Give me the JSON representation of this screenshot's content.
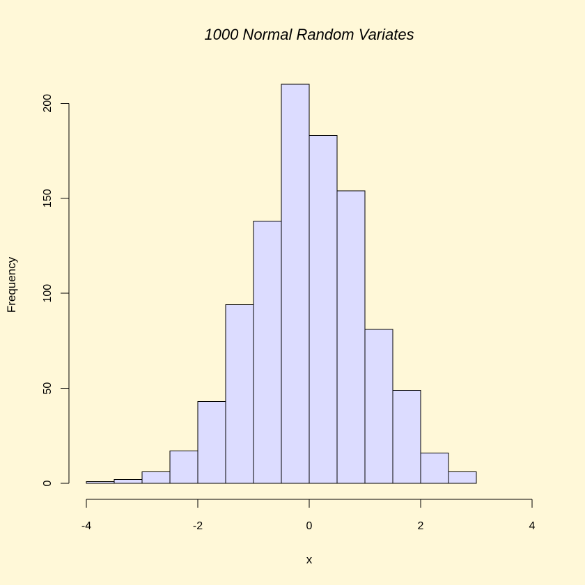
{
  "chart_data": {
    "type": "bar",
    "title": "1000 Normal Random Variates",
    "xlabel": "x",
    "ylabel": "Frequency",
    "colors": {
      "background": "#fff8d8",
      "bar_fill": "#dcdcff",
      "bar_stroke": "#000000"
    },
    "xlim": [
      -4,
      4
    ],
    "ylim": [
      0,
      210
    ],
    "x_ticks": [
      -4,
      -2,
      0,
      2,
      4
    ],
    "y_ticks": [
      0,
      50,
      100,
      150,
      200
    ],
    "bins": [
      {
        "start": -4.0,
        "end": -3.5,
        "count": 1
      },
      {
        "start": -3.5,
        "end": -3.0,
        "count": 2
      },
      {
        "start": -3.0,
        "end": -2.5,
        "count": 6
      },
      {
        "start": -2.5,
        "end": -2.0,
        "count": 17
      },
      {
        "start": -2.0,
        "end": -1.5,
        "count": 43
      },
      {
        "start": -1.5,
        "end": -1.0,
        "count": 94
      },
      {
        "start": -1.0,
        "end": -0.5,
        "count": 138
      },
      {
        "start": -0.5,
        "end": 0.0,
        "count": 210
      },
      {
        "start": 0.0,
        "end": 0.5,
        "count": 183
      },
      {
        "start": 0.5,
        "end": 1.0,
        "count": 154
      },
      {
        "start": 1.0,
        "end": 1.5,
        "count": 81
      },
      {
        "start": 1.5,
        "end": 2.0,
        "count": 49
      },
      {
        "start": 2.0,
        "end": 2.5,
        "count": 16
      },
      {
        "start": 2.5,
        "end": 3.0,
        "count": 6
      }
    ]
  }
}
